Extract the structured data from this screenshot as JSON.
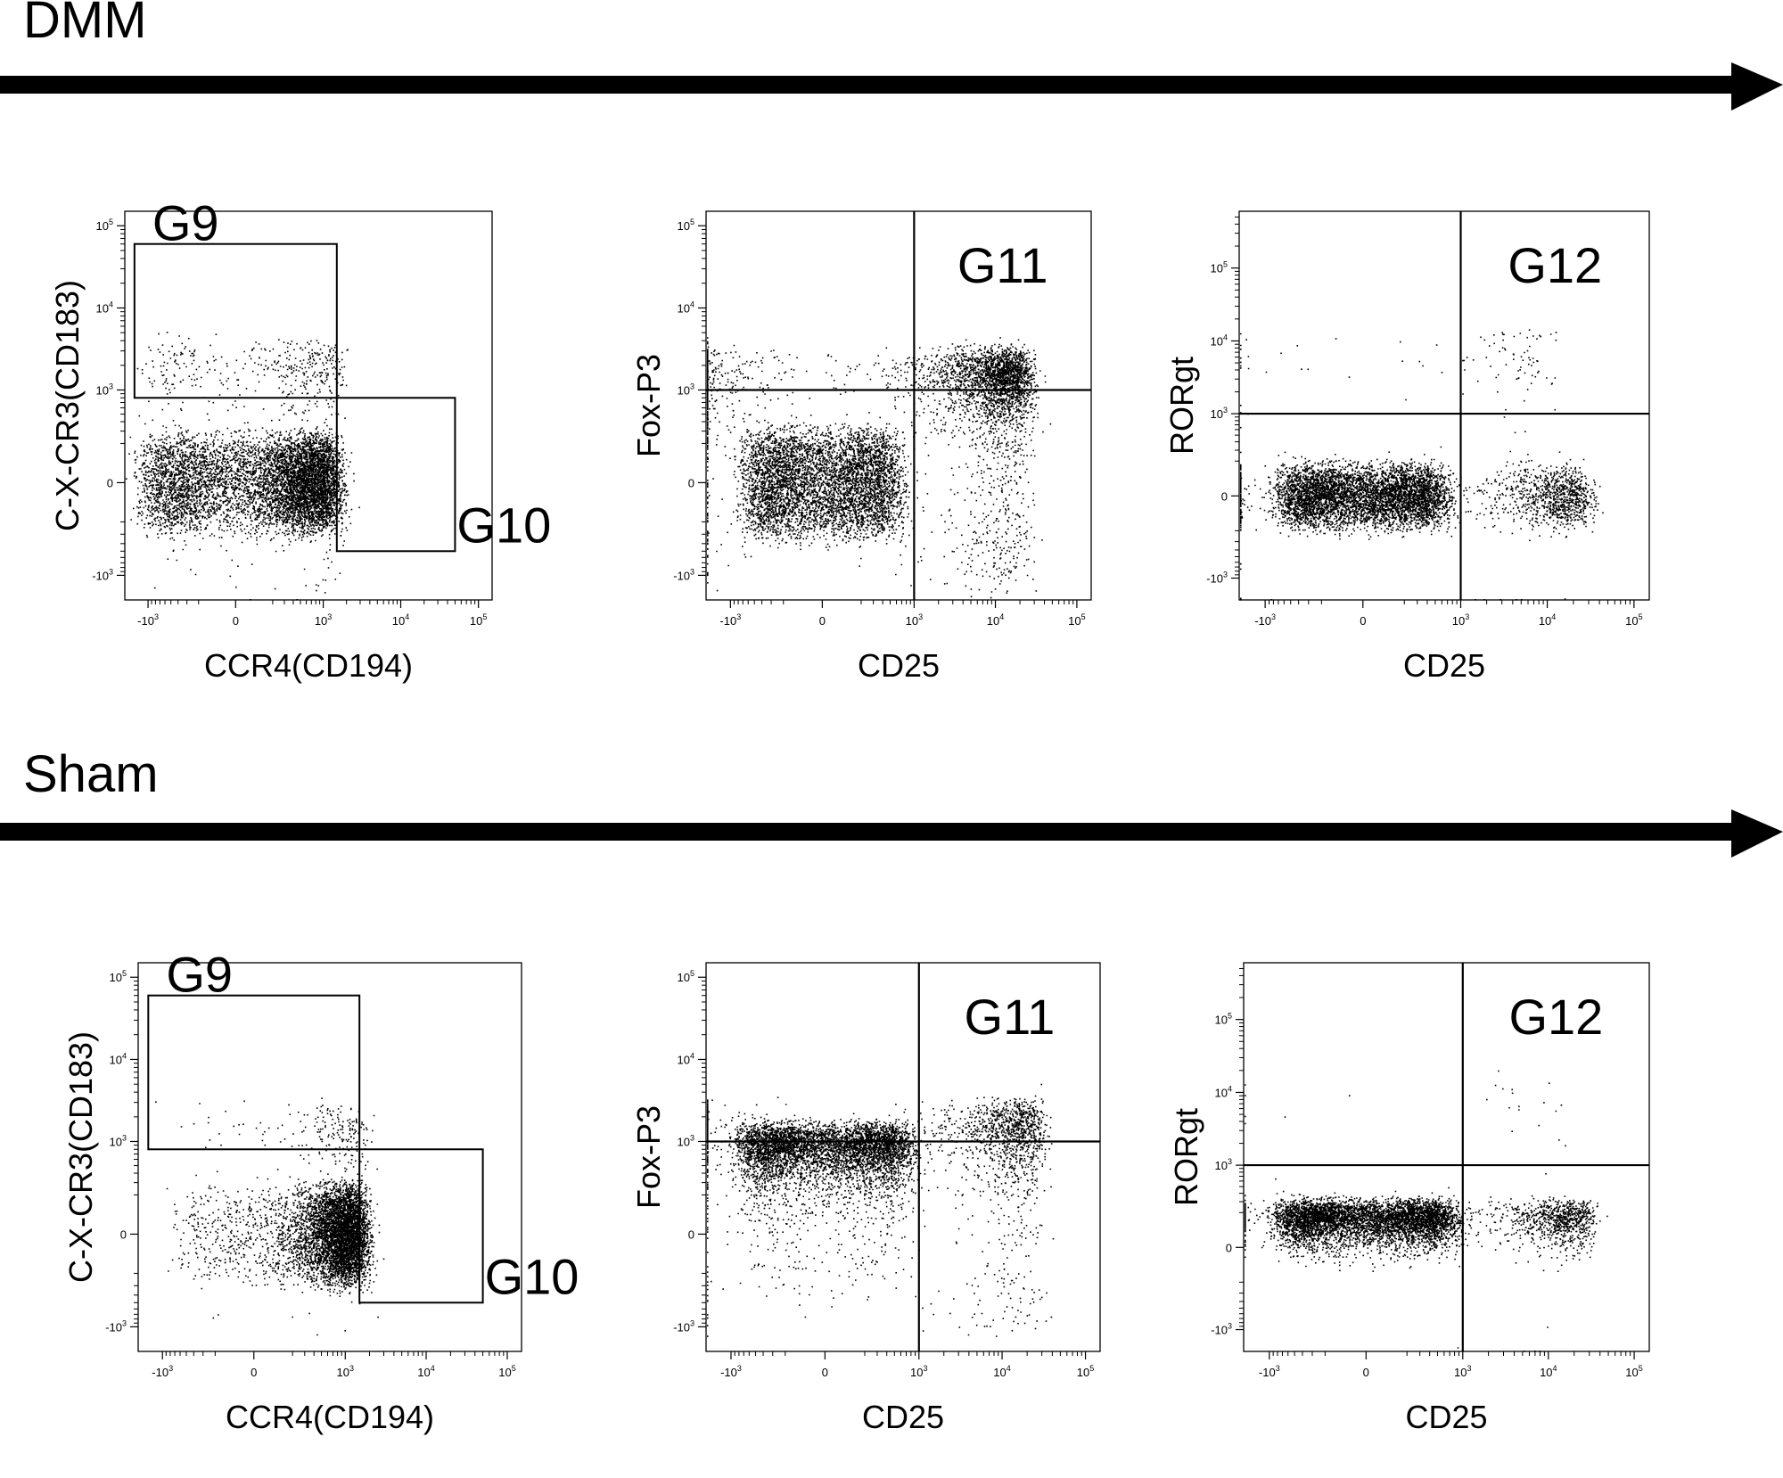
{
  "rows": [
    {
      "title": "DMM",
      "arrow_color": "#000000"
    },
    {
      "title": "Sham",
      "arrow_color": "#000000"
    }
  ],
  "chart_data": [
    {
      "type": "scatter",
      "row": "DMM",
      "xlabel": "CCR4(CD194)",
      "ylabel": "C-X-CR3(CD183)",
      "x_scale": "biexponential",
      "y_scale": "biexponential",
      "xlim": [
        -2000,
        150000
      ],
      "ylim": [
        -2000,
        150000
      ],
      "x_ticks": [
        "-10^3",
        "0",
        "10^3",
        "10^4",
        "10^5"
      ],
      "y_ticks": [
        "-10^3",
        "0",
        "10^3",
        "10^4",
        "10^5"
      ],
      "gates": [
        {
          "label": "G9",
          "x": [
            -1500,
            1500
          ],
          "y": [
            800,
            60000
          ]
        },
        {
          "label": "G10",
          "x": [
            1500,
            50000
          ],
          "y": [
            -500,
            800
          ]
        }
      ],
      "populations": [
        {
          "cx": 300,
          "cy": 0,
          "sx": 600,
          "sy": 120,
          "n": 9000
        },
        {
          "cx": 300,
          "cy": 1500,
          "sx": 700,
          "sy": 1200,
          "n": 500
        }
      ],
      "grid": false
    },
    {
      "type": "scatter",
      "row": "DMM",
      "xlabel": "CD25",
      "ylabel": "Fox-P3",
      "x_scale": "biexponential",
      "y_scale": "biexponential",
      "xlim": [
        -2000,
        150000
      ],
      "ylim": [
        -2000,
        150000
      ],
      "x_ticks": [
        "-10^3",
        "0",
        "10^3",
        "10^4",
        "10^5"
      ],
      "y_ticks": [
        "-10^3",
        "0",
        "10^3",
        "10^4",
        "10^5"
      ],
      "quadrant": {
        "x": 1000,
        "y": 1000,
        "label": "G11"
      },
      "populations": [
        {
          "cx": 0,
          "cy": 0,
          "sx": 300,
          "sy": 140,
          "n": 8000
        },
        {
          "cx": 8000,
          "cy": 1200,
          "sx": 9000,
          "sy": 900,
          "n": 3500
        }
      ],
      "grid": false
    },
    {
      "type": "scatter",
      "row": "DMM",
      "xlabel": "CD25",
      "ylabel": "RORgt",
      "x_scale": "biexponential",
      "y_scale": "biexponential",
      "xlim": [
        -2000,
        150000
      ],
      "ylim": [
        -2000,
        600000
      ],
      "x_ticks": [
        "-10^3",
        "0",
        "10^3",
        "10^4",
        "10^5"
      ],
      "y_ticks": [
        "-10^3",
        "0",
        "10^3",
        "10^4",
        "10^5"
      ],
      "quadrant": {
        "x": 1000,
        "y": 1000,
        "label": "G12"
      },
      "populations": [
        {
          "cx": 0,
          "cy": 0,
          "sx": 300,
          "sy": 80,
          "n": 7000
        },
        {
          "cx": 10000,
          "cy": 0,
          "sx": 10000,
          "sy": 80,
          "n": 1200
        },
        {
          "cx": 3000,
          "cy": 5000,
          "sx": 4000,
          "sy": 4000,
          "n": 120
        }
      ],
      "grid": false
    },
    {
      "type": "scatter",
      "row": "Sham",
      "xlabel": "CCR4(CD194)",
      "ylabel": "C-X-CR3(CD183)",
      "x_scale": "biexponential",
      "y_scale": "biexponential",
      "xlim": [
        -2000,
        150000
      ],
      "ylim": [
        -2000,
        150000
      ],
      "x_ticks": [
        "-10^3",
        "0",
        "10^3",
        "10^4",
        "10^5"
      ],
      "y_ticks": [
        "-10^3",
        "0",
        "10^3",
        "10^4",
        "10^5"
      ],
      "gates": [
        {
          "label": "G9",
          "x": [
            -1500,
            1500
          ],
          "y": [
            800,
            60000
          ]
        },
        {
          "label": "G10",
          "x": [
            1500,
            50000
          ],
          "y": [
            -500,
            800
          ]
        }
      ],
      "populations": [
        {
          "cx": 800,
          "cy": 0,
          "sx": 500,
          "sy": 120,
          "n": 9000
        },
        {
          "cx": 800,
          "cy": 1200,
          "sx": 600,
          "sy": 900,
          "n": 250
        }
      ],
      "grid": false
    },
    {
      "type": "scatter",
      "row": "Sham",
      "xlabel": "CD25",
      "ylabel": "Fox-P3",
      "x_scale": "biexponential",
      "y_scale": "biexponential",
      "xlim": [
        -2000,
        150000
      ],
      "ylim": [
        -2000,
        150000
      ],
      "x_ticks": [
        "-10^3",
        "0",
        "10^3",
        "10^4",
        "10^5"
      ],
      "y_ticks": [
        "-10^3",
        "0",
        "10^3",
        "10^4",
        "10^5"
      ],
      "quadrant": {
        "x": 1000,
        "y": 1000,
        "label": "G11"
      },
      "populations": [
        {
          "cx": 0,
          "cy": 800,
          "sx": 350,
          "sy": 400,
          "n": 9000
        },
        {
          "cx": 10000,
          "cy": 1200,
          "sx": 10000,
          "sy": 900,
          "n": 1500
        }
      ],
      "grid": false
    },
    {
      "type": "scatter",
      "row": "Sham",
      "xlabel": "CD25",
      "ylabel": "RORgt",
      "x_scale": "biexponential",
      "y_scale": "biexponential",
      "xlim": [
        -2000,
        150000
      ],
      "ylim": [
        -2000,
        600000
      ],
      "x_ticks": [
        "-10^3",
        "0",
        "10^3",
        "10^4",
        "10^5"
      ],
      "y_ticks": [
        "-10^3",
        "0",
        "10^3",
        "10^4",
        "10^5"
      ],
      "quadrant": {
        "x": 1000,
        "y": 1000,
        "label": "G12"
      },
      "populations": [
        {
          "cx": 0,
          "cy": 150,
          "sx": 350,
          "sy": 80,
          "n": 7000
        },
        {
          "cx": 12000,
          "cy": 150,
          "sx": 10000,
          "sy": 80,
          "n": 1000
        },
        {
          "cx": 4000,
          "cy": 6000,
          "sx": 5000,
          "sy": 5000,
          "n": 30
        }
      ],
      "grid": false
    }
  ]
}
